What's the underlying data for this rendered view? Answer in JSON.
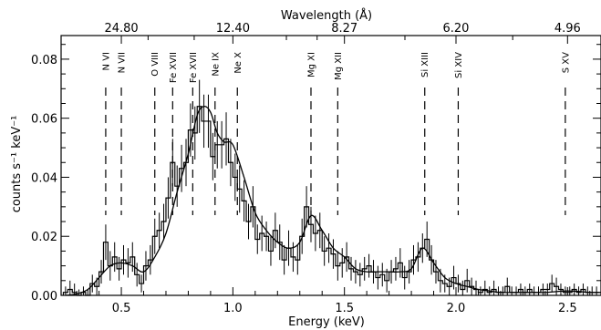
{
  "chart_data": {
    "type": "line",
    "xlabel": "Energy (keV)",
    "ylabel": "counts s⁻¹ keV⁻¹",
    "top_axis_label": "Wavelength (Å)",
    "xlim": [
      0.23,
      2.65
    ],
    "ylim": [
      0,
      0.088
    ],
    "x_ticks": [
      "0.5",
      "1.0",
      "1.5",
      "2.0",
      "2.5"
    ],
    "y_ticks": [
      "0.00",
      "0.02",
      "0.04",
      "0.06",
      "0.08"
    ],
    "top_ticks": [
      {
        "energy": 0.5,
        "label": "24.80"
      },
      {
        "energy": 1.0,
        "label": "12.40"
      },
      {
        "energy": 1.5,
        "label": "8.27"
      },
      {
        "energy": 2.0,
        "label": "6.20"
      },
      {
        "energy": 2.5,
        "label": "4.96"
      }
    ],
    "lines": [
      {
        "label": "N VI",
        "energy": 0.43
      },
      {
        "label": "N VII",
        "energy": 0.5
      },
      {
        "label": "O VIII",
        "energy": 0.65
      },
      {
        "label": "Fe XVII",
        "energy": 0.73
      },
      {
        "label": "Fe XVII",
        "energy": 0.82
      },
      {
        "label": "Ne IX",
        "energy": 0.92
      },
      {
        "label": "Ne X",
        "energy": 1.02
      },
      {
        "label": "Mg XI",
        "energy": 1.35
      },
      {
        "label": "Mg XII",
        "energy": 1.47
      },
      {
        "label": "Si XIII",
        "energy": 1.86
      },
      {
        "label": "Si XIV",
        "energy": 2.01
      },
      {
        "label": "S XV",
        "energy": 2.49
      }
    ],
    "series": [
      {
        "kind": "histogram",
        "bin_width": 0.02,
        "x": [
          0.25,
          0.27,
          0.29,
          0.31,
          0.33,
          0.35,
          0.37,
          0.39,
          0.41,
          0.43,
          0.45,
          0.47,
          0.49,
          0.51,
          0.53,
          0.55,
          0.57,
          0.59,
          0.61,
          0.63,
          0.65,
          0.67,
          0.69,
          0.71,
          0.73,
          0.75,
          0.77,
          0.79,
          0.81,
          0.83,
          0.85,
          0.87,
          0.89,
          0.91,
          0.93,
          0.95,
          0.97,
          0.99,
          1.01,
          1.03,
          1.05,
          1.07,
          1.09,
          1.11,
          1.13,
          1.15,
          1.17,
          1.19,
          1.21,
          1.23,
          1.25,
          1.27,
          1.29,
          1.31,
          1.33,
          1.35,
          1.37,
          1.39,
          1.41,
          1.43,
          1.45,
          1.47,
          1.49,
          1.51,
          1.53,
          1.55,
          1.57,
          1.59,
          1.61,
          1.63,
          1.65,
          1.67,
          1.69,
          1.71,
          1.73,
          1.75,
          1.77,
          1.79,
          1.81,
          1.83,
          1.85,
          1.87,
          1.89,
          1.91,
          1.93,
          1.95,
          1.97,
          1.99,
          2.01,
          2.03,
          2.05,
          2.07,
          2.09,
          2.11,
          2.13,
          2.15,
          2.17,
          2.19,
          2.21,
          2.23,
          2.25,
          2.27,
          2.29,
          2.31,
          2.33,
          2.35,
          2.37,
          2.39,
          2.41,
          2.43,
          2.45,
          2.47,
          2.49,
          2.51,
          2.53,
          2.55,
          2.57,
          2.59,
          2.61,
          2.63
        ],
        "y": [
          0.001,
          0.002,
          0.001,
          0.0,
          0.001,
          0.0,
          0.004,
          0.003,
          0.008,
          0.018,
          0.01,
          0.013,
          0.009,
          0.012,
          0.011,
          0.013,
          0.007,
          0.004,
          0.01,
          0.012,
          0.02,
          0.022,
          0.025,
          0.033,
          0.045,
          0.037,
          0.043,
          0.045,
          0.056,
          0.055,
          0.064,
          0.059,
          0.059,
          0.047,
          0.051,
          0.051,
          0.053,
          0.045,
          0.04,
          0.036,
          0.032,
          0.025,
          0.03,
          0.019,
          0.021,
          0.02,
          0.015,
          0.022,
          0.018,
          0.012,
          0.016,
          0.013,
          0.012,
          0.02,
          0.03,
          0.024,
          0.021,
          0.022,
          0.015,
          0.016,
          0.014,
          0.01,
          0.011,
          0.013,
          0.009,
          0.008,
          0.007,
          0.009,
          0.01,
          0.008,
          0.006,
          0.007,
          0.005,
          0.008,
          0.009,
          0.011,
          0.006,
          0.008,
          0.012,
          0.013,
          0.016,
          0.019,
          0.012,
          0.008,
          0.005,
          0.004,
          0.003,
          0.006,
          0.004,
          0.002,
          0.005,
          0.003,
          0.002,
          0.001,
          0.002,
          0.001,
          0.002,
          0.001,
          0.001,
          0.003,
          0.001,
          0.001,
          0.002,
          0.001,
          0.002,
          0.001,
          0.001,
          0.002,
          0.002,
          0.004,
          0.003,
          0.002,
          0.001,
          0.001,
          0.002,
          0.001,
          0.002,
          0.001,
          0.001,
          0.001
        ],
        "err": [
          0.002,
          0.003,
          0.003,
          0.002,
          0.002,
          0.002,
          0.003,
          0.003,
          0.004,
          0.006,
          0.005,
          0.005,
          0.004,
          0.005,
          0.005,
          0.005,
          0.004,
          0.003,
          0.005,
          0.005,
          0.006,
          0.006,
          0.006,
          0.007,
          0.008,
          0.007,
          0.008,
          0.008,
          0.009,
          0.009,
          0.009,
          0.009,
          0.009,
          0.008,
          0.008,
          0.008,
          0.009,
          0.008,
          0.008,
          0.008,
          0.007,
          0.006,
          0.007,
          0.005,
          0.006,
          0.005,
          0.005,
          0.006,
          0.006,
          0.005,
          0.006,
          0.005,
          0.005,
          0.006,
          0.007,
          0.006,
          0.006,
          0.006,
          0.005,
          0.005,
          0.005,
          0.005,
          0.005,
          0.005,
          0.004,
          0.004,
          0.004,
          0.004,
          0.004,
          0.004,
          0.004,
          0.004,
          0.004,
          0.004,
          0.004,
          0.005,
          0.004,
          0.004,
          0.005,
          0.005,
          0.005,
          0.006,
          0.005,
          0.004,
          0.004,
          0.003,
          0.003,
          0.004,
          0.003,
          0.003,
          0.004,
          0.003,
          0.003,
          0.002,
          0.003,
          0.002,
          0.003,
          0.002,
          0.002,
          0.003,
          0.002,
          0.002,
          0.002,
          0.002,
          0.002,
          0.002,
          0.002,
          0.002,
          0.002,
          0.003,
          0.003,
          0.002,
          0.002,
          0.002,
          0.002,
          0.002,
          0.002,
          0.002,
          0.002,
          0.002
        ]
      },
      {
        "kind": "model",
        "x": [
          0.25,
          0.3,
          0.35,
          0.4,
          0.45,
          0.5,
          0.55,
          0.6,
          0.65,
          0.7,
          0.75,
          0.8,
          0.84,
          0.87,
          0.9,
          0.93,
          0.96,
          1.0,
          1.05,
          1.1,
          1.15,
          1.2,
          1.25,
          1.3,
          1.35,
          1.4,
          1.45,
          1.5,
          1.55,
          1.6,
          1.65,
          1.7,
          1.75,
          1.8,
          1.85,
          1.9,
          1.95,
          2.0,
          2.05,
          2.1,
          2.15,
          2.2,
          2.3,
          2.4,
          2.5,
          2.6,
          2.65
        ],
        "y": [
          0.0,
          0.0005,
          0.002,
          0.006,
          0.01,
          0.011,
          0.01,
          0.008,
          0.013,
          0.021,
          0.035,
          0.048,
          0.061,
          0.064,
          0.062,
          0.055,
          0.052,
          0.051,
          0.04,
          0.028,
          0.022,
          0.018,
          0.016,
          0.018,
          0.027,
          0.022,
          0.016,
          0.013,
          0.009,
          0.008,
          0.008,
          0.008,
          0.008,
          0.009,
          0.016,
          0.011,
          0.006,
          0.004,
          0.003,
          0.002,
          0.0015,
          0.001,
          0.001,
          0.001,
          0.0015,
          0.001,
          0.001
        ]
      }
    ]
  }
}
